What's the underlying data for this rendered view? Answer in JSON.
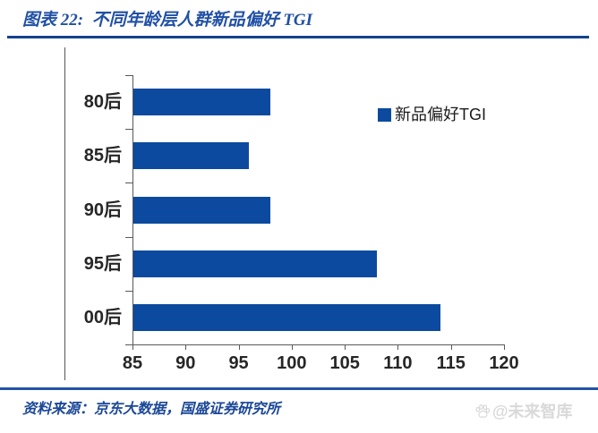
{
  "header": {
    "title": "图表 22:  不同年龄层人群新品偏好 TGI"
  },
  "legend": {
    "label": "新品偏好TGI",
    "swatch_icon": "blue-square-icon"
  },
  "footer": {
    "source": "资料来源：京东大数据，国盛证券研究所",
    "watermark_icon": "paw-icon",
    "watermark": "@未来智库"
  },
  "colors": {
    "bar": "#0b4a9f",
    "title_text": "#2150a5",
    "title_rule": "#16418f",
    "footer_rule": "#2353a4",
    "axis": "#595959",
    "tick_label": "#262626",
    "watermark": "#d9d9d9"
  },
  "chart_data": {
    "type": "bar",
    "orientation": "horizontal",
    "title": "图表 22: 不同年龄层人群新品偏好 TGI",
    "categories": [
      "80后",
      "85后",
      "90后",
      "95后",
      "00后"
    ],
    "series": [
      {
        "name": "新品偏好TGI",
        "values": [
          98,
          96,
          98,
          108,
          114
        ]
      }
    ],
    "xlabel": "",
    "ylabel": "",
    "xlim": [
      85,
      120
    ],
    "xticks": [
      85,
      90,
      95,
      100,
      105,
      110,
      115,
      120
    ],
    "grid": false,
    "legend_position": "inside-top-right",
    "bars_start_at": 85
  }
}
